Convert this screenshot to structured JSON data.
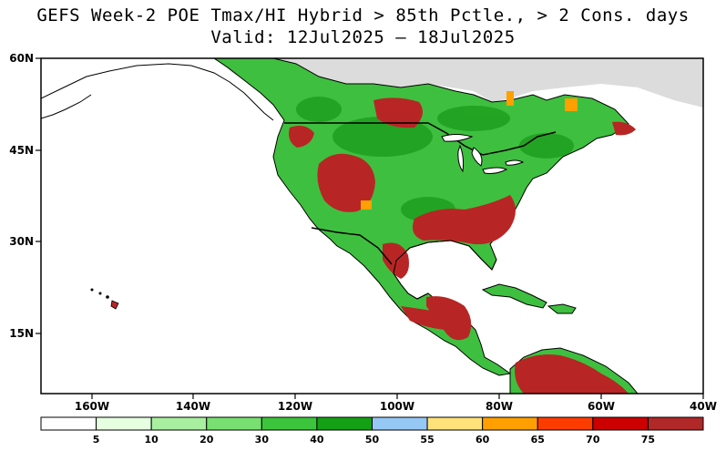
{
  "title": {
    "line1": "GEFS Week-2 POE Tmax/HI Hybrid > 85th Pctle., > 2 Cons. days",
    "line2": "Valid: 12Jul2025 – 18Jul2025"
  },
  "map": {
    "lon_labels": [
      "160W",
      "140W",
      "120W",
      "100W",
      "80W",
      "60W",
      "40W"
    ],
    "lat_labels": [
      "60N",
      "45N",
      "30N",
      "15N"
    ],
    "colors": {
      "ocean": "#ffffff",
      "no_data": "#dcdcdc",
      "land_low": "#3fbf3f",
      "land_mid": "#1f9f1f",
      "high": "#b82525"
    }
  },
  "colorbar": {
    "labels": [
      "5",
      "10",
      "20",
      "30",
      "40",
      "50",
      "55",
      "60",
      "65",
      "70",
      "75"
    ],
    "colors": [
      "#ffffff",
      "#e6ffe0",
      "#a8f0a0",
      "#78e070",
      "#3cc43c",
      "#14a014",
      "#96c8f5",
      "#ffe27a",
      "#ffa000",
      "#ff3c00",
      "#cc0000",
      "#b02828"
    ]
  }
}
